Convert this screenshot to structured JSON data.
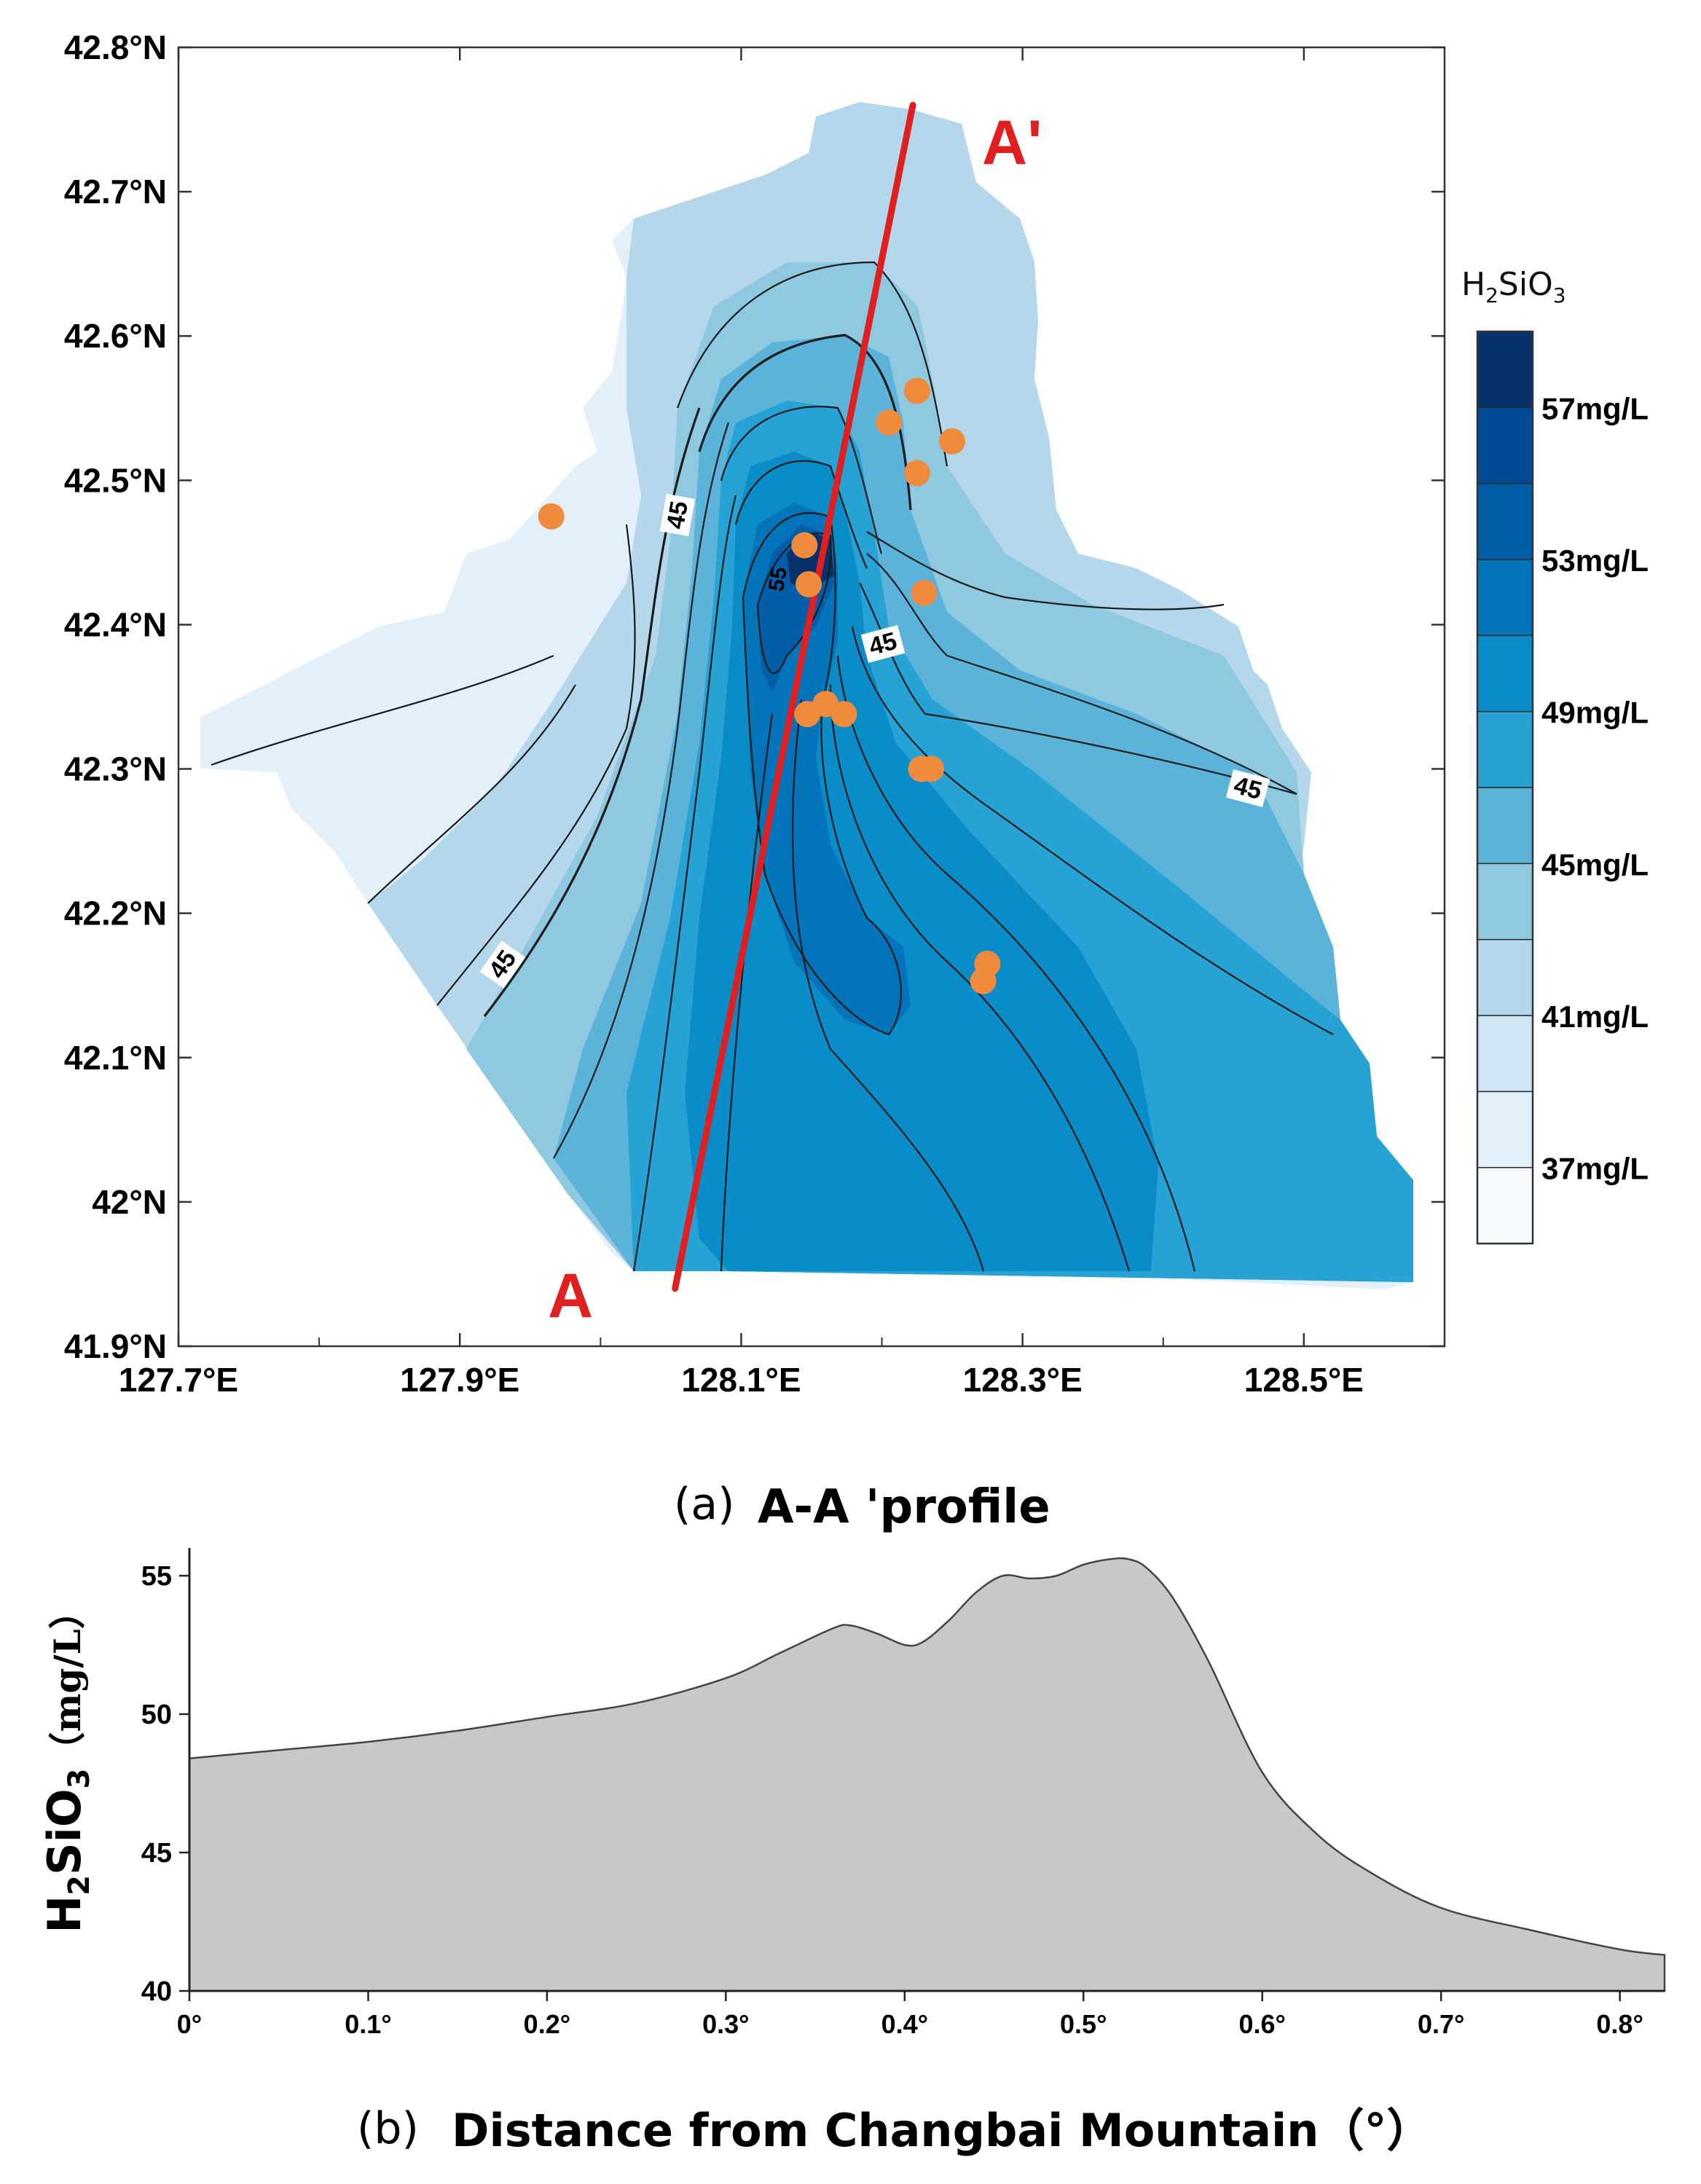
{
  "chart_data": [
    {
      "type": "contour-map",
      "panel": "a",
      "xaxis": {
        "range": [
          127.7,
          128.6
        ],
        "ticks": [
          127.7,
          127.9,
          128.1,
          128.3,
          128.5
        ],
        "tick_labels": [
          "127.7°E",
          "127.9°E",
          "128.1°E",
          "128.3°E",
          "128.5°E"
        ]
      },
      "yaxis": {
        "range": [
          41.9,
          42.8
        ],
        "ticks": [
          41.9,
          42.0,
          42.1,
          42.2,
          42.3,
          42.4,
          42.5,
          42.6,
          42.7,
          42.8
        ],
        "tick_labels": [
          "41.9°N",
          "42°N",
          "42.1°N",
          "42.2°N",
          "42.3°N",
          "42.4°N",
          "42.5°N",
          "42.6°N",
          "42.7°N",
          "42.8°N"
        ]
      },
      "profile_line": {
        "start_label": "A",
        "end_label": "A'",
        "start": [
          128.053,
          41.94
        ],
        "end": [
          128.222,
          42.76
        ]
      },
      "contour_labels": [
        {
          "text": "45",
          "lon": 128.06,
          "lat": 42.475
        },
        {
          "text": "45",
          "lon": 128.21,
          "lat": 42.385
        },
        {
          "text": "45",
          "lon": 128.47,
          "lat": 42.285
        },
        {
          "text": "45",
          "lon": 127.93,
          "lat": 42.165
        },
        {
          "text": "55",
          "lon": 128.133,
          "lat": 42.43
        }
      ],
      "sample_points": [
        [
          127.965,
          42.475
        ],
        [
          128.225,
          42.562
        ],
        [
          128.205,
          42.54
        ],
        [
          128.25,
          42.527
        ],
        [
          128.225,
          42.505
        ],
        [
          128.145,
          42.455
        ],
        [
          128.148,
          42.428
        ],
        [
          128.23,
          42.422
        ],
        [
          128.16,
          42.345
        ],
        [
          128.147,
          42.338
        ],
        [
          128.173,
          42.338
        ],
        [
          128.228,
          42.3
        ],
        [
          128.235,
          42.3
        ],
        [
          128.275,
          42.165
        ],
        [
          128.272,
          42.153
        ]
      ],
      "legend": {
        "title": "H2SiO3",
        "levels": [
          37,
          39,
          41,
          43,
          45,
          47,
          49,
          51,
          53,
          55,
          57
        ],
        "labels": [
          "57mg/L",
          "53mg/L",
          "49mg/L",
          "45mg/L",
          "41mg/L",
          "37mg/L"
        ],
        "colors": [
          "#f6fafd",
          "#e4f0f9",
          "#d0e5f4",
          "#b5d7ec",
          "#8ec9e0",
          "#5bb3da",
          "#26a2d5",
          "#0a8cc9",
          "#0474ba",
          "#025da8",
          "#034a96",
          "#08306b"
        ]
      }
    },
    {
      "type": "area",
      "panel": "b",
      "title": "A-A 'profile",
      "xlabel": "Distance from Changbai Mountain（°）",
      "ylabel": "H2SiO3（mg/L）",
      "xlim": [
        0,
        0.825
      ],
      "ylim": [
        40,
        56
      ],
      "x_ticks": [
        "0°",
        "0.1°",
        "0.2°",
        "0.3°",
        "0.4°",
        "0.5°",
        "0.6°",
        "0.7°",
        "0.8°"
      ],
      "y_ticks": [
        "40",
        "45",
        "50",
        "55"
      ],
      "fill": "#c8c8c8",
      "x": [
        0,
        0.05,
        0.1,
        0.15,
        0.2,
        0.25,
        0.3,
        0.33,
        0.36,
        0.37,
        0.385,
        0.4,
        0.41,
        0.425,
        0.44,
        0.455,
        0.47,
        0.485,
        0.5,
        0.515,
        0.525,
        0.535,
        0.55,
        0.57,
        0.6,
        0.63,
        0.66,
        0.7,
        0.75,
        0.8,
        0.825
      ],
      "y": [
        48.4,
        48.7,
        49.0,
        49.4,
        49.9,
        50.4,
        51.3,
        52.2,
        53.1,
        53.2,
        52.9,
        52.5,
        52.6,
        53.4,
        54.4,
        55.0,
        54.9,
        55.0,
        55.4,
        55.6,
        55.6,
        55.3,
        54.2,
        51.9,
        47.9,
        45.7,
        44.3,
        43.0,
        42.2,
        41.5,
        41.3
      ]
    }
  ],
  "panel_a": {
    "profile_start_label": "A",
    "profile_end_label": "A'",
    "legend_title_main": "H",
    "legend_title_sub": "2",
    "legend_title_tail": "SiO",
    "legend_title_sub2": "3"
  },
  "panel_b": {
    "caption_letter": "(a)",
    "caption_title": "A-A 'profile",
    "xcaption_letter": "(b)",
    "xcaption_text": "Distance from Changbai Mountain（°）",
    "ylabel_main": "H",
    "ylabel_sub": "2",
    "ylabel_mid": "SiO",
    "ylabel_sub2": "3",
    "ylabel_unit": "（mg/L）"
  }
}
